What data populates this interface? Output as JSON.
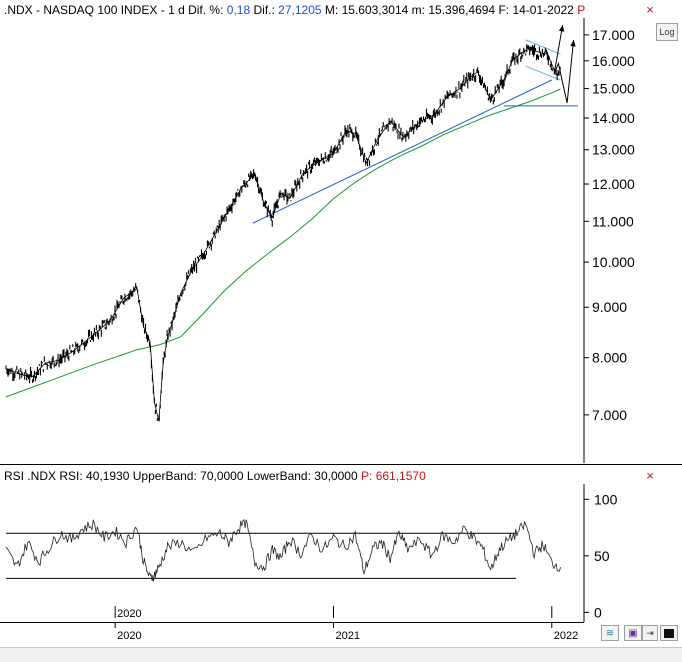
{
  "header": {
    "symbol": ".NDX - NASDAQ 100 INDEX -",
    "period": "1 d",
    "dif_pct_label": "Dif. %:",
    "dif_pct_value": "0,18",
    "dif_label": "Dif.:",
    "dif_value": "27,1205",
    "max_label": "M:",
    "max_value": "15.603,3014",
    "min_label": "m:",
    "min_value": "15.396,4694",
    "date_label": "F:",
    "date_value": "14-01-2022",
    "flag": "P"
  },
  "log_button": "Log",
  "rsi_header": {
    "label": "RSI .NDX RSI:",
    "rsi_value": "40,1930",
    "upper_label": "UpperBand:",
    "upper_value": "70,0000",
    "lower_label": "LowerBand:",
    "lower_value": "30,0000",
    "p_label": "P:",
    "p_value": "661,1570"
  },
  "icons": {
    "close": "close-icon",
    "compare": "compare-icon",
    "save": "save-icon",
    "resize": "resize-icon"
  },
  "colors": {
    "price": "#000000",
    "sma": "#1a9a2a",
    "trendline": "#1f5fd0",
    "channel": "#5bb8d8",
    "rsi": "#222222",
    "header_value": "#1f4fd8",
    "header_red": "#d01010"
  },
  "chart_data": [
    {
      "type": "line",
      "name": "price",
      "y_scale": "log",
      "ylim": [
        6300,
        17600
      ],
      "xlim": [
        2019.5,
        2022.12
      ],
      "yticks": [
        7000,
        8000,
        9000,
        10000,
        11000,
        12000,
        13000,
        14000,
        15000,
        16000,
        17000
      ],
      "ytick_labels": [
        "7.000",
        "8.000",
        "9.000",
        "10.000",
        "11.000",
        "12.000",
        "13.000",
        "14.000",
        "15.000",
        "16.000",
        "17.000"
      ],
      "series": [
        {
          "role": "close",
          "x": [
            2019.5,
            2019.56,
            2019.62,
            2019.68,
            2019.74,
            2019.8,
            2019.86,
            2019.92,
            2019.98,
            2020.04,
            2020.1,
            2020.13,
            2020.16,
            2020.18,
            2020.2,
            2020.22,
            2020.24,
            2020.27,
            2020.3,
            2020.35,
            2020.4,
            2020.46,
            2020.52,
            2020.58,
            2020.64,
            2020.68,
            2020.72,
            2020.76,
            2020.8,
            2020.86,
            2020.92,
            2021.0,
            2021.06,
            2021.1,
            2021.15,
            2021.2,
            2021.26,
            2021.32,
            2021.4,
            2021.46,
            2021.52,
            2021.58,
            2021.62,
            2021.66,
            2021.72,
            2021.78,
            2021.82,
            2021.86,
            2021.9,
            2021.95,
            2021.98,
            2022.02,
            2022.04
          ],
          "values": [
            7800,
            7700,
            7650,
            7900,
            7950,
            8100,
            8300,
            8500,
            8750,
            9200,
            9400,
            8600,
            8300,
            7200,
            6900,
            7900,
            8400,
            8800,
            9300,
            9800,
            10150,
            10700,
            11300,
            11900,
            12300,
            11500,
            11100,
            11750,
            11600,
            12300,
            12600,
            12900,
            13600,
            13500,
            12600,
            13300,
            13900,
            13400,
            13900,
            14100,
            14700,
            15000,
            15350,
            15600,
            14600,
            15300,
            16000,
            16300,
            16450,
            16300,
            16250,
            15500,
            15603
          ]
        },
        {
          "role": "sma",
          "x": [
            2019.5,
            2019.7,
            2019.9,
            2020.1,
            2020.2,
            2020.3,
            2020.4,
            2020.5,
            2020.6,
            2020.7,
            2020.8,
            2020.9,
            2021.0,
            2021.1,
            2021.2,
            2021.3,
            2021.4,
            2021.5,
            2021.6,
            2021.7,
            2021.8,
            2021.9,
            2022.0,
            2022.04
          ],
          "values": [
            7300,
            7580,
            7870,
            8150,
            8240,
            8400,
            8850,
            9350,
            9800,
            10200,
            10600,
            11050,
            11600,
            12050,
            12450,
            12800,
            13100,
            13450,
            13750,
            14050,
            14300,
            14550,
            14850,
            14980
          ]
        }
      ],
      "annotations": [
        {
          "kind": "trendline",
          "x": [
            2020.63,
            2022.0
          ],
          "y": [
            10950,
            15300
          ]
        },
        {
          "kind": "support",
          "x": [
            2021.78,
            2022.12
          ],
          "y": [
            14400,
            14400
          ]
        },
        {
          "kind": "channel-upper",
          "x": [
            2021.88,
            2022.04
          ],
          "y": [
            16800,
            16250
          ]
        },
        {
          "kind": "channel-lower",
          "x": [
            2021.88,
            2022.04
          ],
          "y": [
            15800,
            15300
          ]
        },
        {
          "kind": "projection-up",
          "x": [
            2022.01,
            2022.05
          ],
          "y": [
            15500,
            17400
          ]
        },
        {
          "kind": "projection-down-up",
          "x": [
            2022.01,
            2022.03,
            2022.07,
            2022.1
          ],
          "y": [
            15500,
            15900,
            14500,
            16800
          ]
        }
      ]
    },
    {
      "type": "line",
      "name": "rsi",
      "ylim": [
        -5,
        110
      ],
      "yticks": [
        0,
        50,
        100
      ],
      "ytick_labels": [
        "0",
        "50",
        "100"
      ],
      "bands": [
        70,
        30
      ],
      "x": [
        2019.5,
        2019.55,
        2019.6,
        2019.65,
        2019.7,
        2019.75,
        2019.8,
        2019.85,
        2019.9,
        2019.95,
        2020.0,
        2020.05,
        2020.1,
        2020.13,
        2020.16,
        2020.18,
        2020.2,
        2020.24,
        2020.3,
        2020.36,
        2020.42,
        2020.48,
        2020.52,
        2020.56,
        2020.6,
        2020.64,
        2020.68,
        2020.72,
        2020.76,
        2020.8,
        2020.85,
        2020.9,
        2020.95,
        2021.0,
        2021.05,
        2021.1,
        2021.14,
        2021.18,
        2021.22,
        2021.26,
        2021.3,
        2021.34,
        2021.4,
        2021.45,
        2021.5,
        2021.55,
        2021.6,
        2021.64,
        2021.68,
        2021.72,
        2021.76,
        2021.8,
        2021.84,
        2021.88,
        2021.92,
        2021.96,
        2022.0,
        2022.04
      ],
      "values": [
        55,
        40,
        62,
        45,
        58,
        70,
        64,
        74,
        78,
        66,
        72,
        62,
        76,
        45,
        30,
        33,
        40,
        58,
        62,
        52,
        66,
        70,
        62,
        74,
        80,
        44,
        40,
        55,
        48,
        65,
        52,
        68,
        55,
        66,
        58,
        68,
        36,
        56,
        62,
        48,
        70,
        56,
        64,
        50,
        68,
        62,
        74,
        66,
        58,
        38,
        56,
        64,
        70,
        78,
        52,
        60,
        44,
        40
      ]
    }
  ],
  "x_axis": {
    "labels": [
      {
        "x": 2020.0,
        "text": "2020"
      },
      {
        "x": 2021.0,
        "text": "2021"
      },
      {
        "x": 2022.0,
        "text": "2022"
      }
    ],
    "extra_label": "2020"
  }
}
